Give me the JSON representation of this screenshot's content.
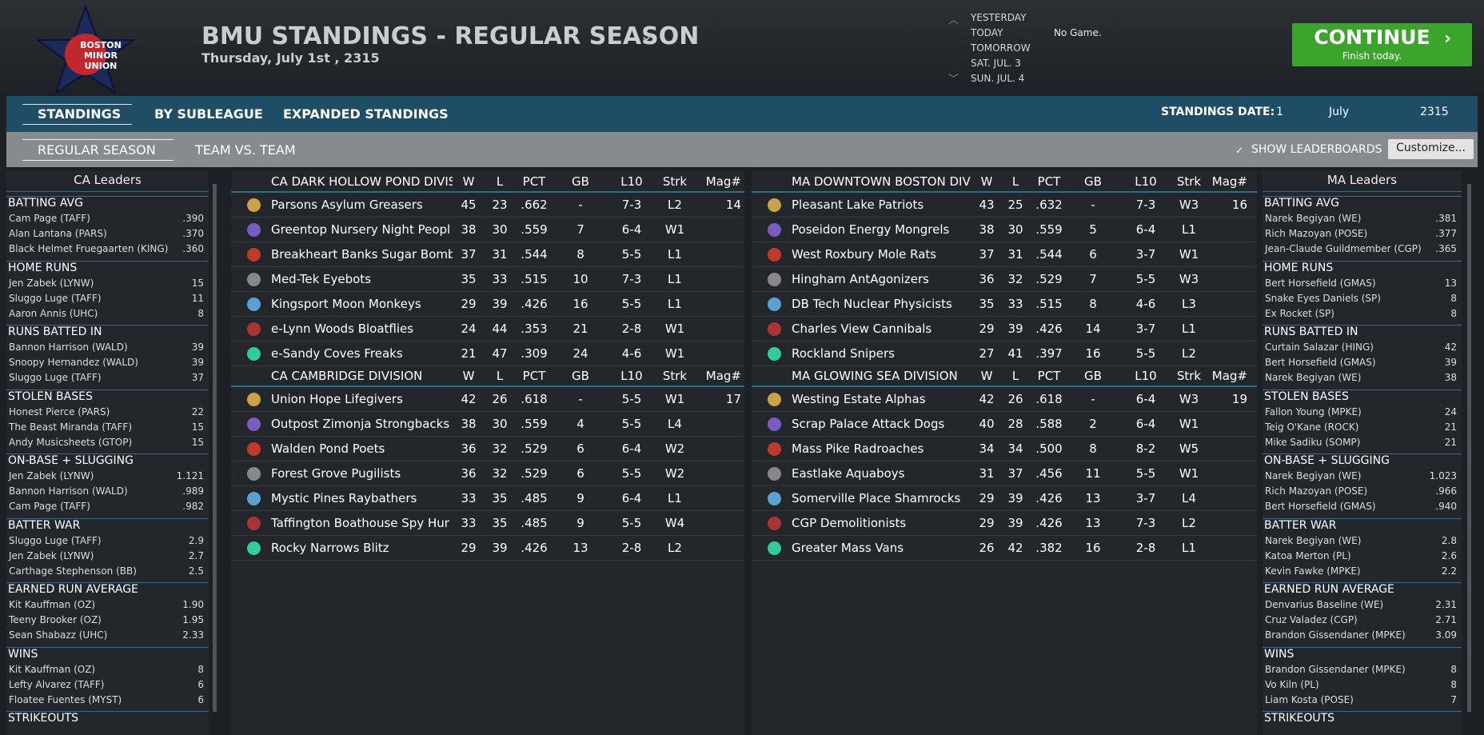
{
  "header": {
    "logo": [
      "BOSTON",
      "MINOR",
      "UNION"
    ],
    "title": "BMU STANDINGS - REGULAR SEASON",
    "date": "Thursday, July 1st , 2315",
    "days": [
      "YESTERDAY",
      "TODAY",
      "TOMORROW",
      "SAT. JUL. 3",
      "SUN. JUL. 4"
    ],
    "game": "No Game.",
    "continue": {
      "label": "CONTINUE",
      "sub": "Finish today."
    }
  },
  "nav": {
    "tabs": [
      "STANDINGS",
      "BY SUBLEAGUE",
      "EXPANDED STANDINGS"
    ],
    "date_label": "STANDINGS DATE:",
    "date_day": "1",
    "date_month": "July",
    "date_year": "2315"
  },
  "subnav": {
    "tabs": [
      "REGULAR SEASON",
      "TEAM VS. TEAM"
    ],
    "checkbox": "SHOW LEADERBOARDS",
    "button": "Customize..."
  },
  "leaders": [
    {
      "title": "CA Leaders",
      "sections": [
        {
          "title": "BATTING AVG",
          "rows": [
            [
              "Cam Page (TAFF)",
              ".390"
            ],
            [
              "Alan Lantana (PARS)",
              ".370"
            ],
            [
              "Black Helmet Fruegaarten (KING)",
              ".360"
            ]
          ]
        },
        {
          "title": "HOME RUNS",
          "rows": [
            [
              "Jen Zabek (LYNW)",
              "15"
            ],
            [
              "Sluggo Luge (TAFF)",
              "11"
            ],
            [
              "Aaron Annis (UHC)",
              "8"
            ]
          ]
        },
        {
          "title": "RUNS BATTED IN",
          "rows": [
            [
              "Bannon Harrison (WALD)",
              "39"
            ],
            [
              "Snoopy Hernandez (WALD)",
              "39"
            ],
            [
              "Sluggo Luge (TAFF)",
              "37"
            ]
          ]
        },
        {
          "title": "STOLEN BASES",
          "rows": [
            [
              "Honest Pierce (PARS)",
              "22"
            ],
            [
              "The Beast Miranda (TAFF)",
              "15"
            ],
            [
              "Andy Musicsheets (GTOP)",
              "15"
            ]
          ]
        },
        {
          "title": "ON-BASE + SLUGGING",
          "rows": [
            [
              "Jen Zabek (LYNW)",
              "1.121"
            ],
            [
              "Bannon Harrison (WALD)",
              ".989"
            ],
            [
              "Cam Page (TAFF)",
              ".982"
            ]
          ]
        },
        {
          "title": "BATTER WAR",
          "rows": [
            [
              "Sluggo Luge (TAFF)",
              "2.9"
            ],
            [
              "Jen Zabek (LYNW)",
              "2.7"
            ],
            [
              "Carthage Stephenson (BB)",
              "2.5"
            ]
          ]
        },
        {
          "title": "EARNED RUN AVERAGE",
          "rows": [
            [
              "Kit Kauffman (OZ)",
              "1.90"
            ],
            [
              "Teeny Brooker (OZ)",
              "1.95"
            ],
            [
              "Sean Shabazz (UHC)",
              "2.33"
            ]
          ]
        },
        {
          "title": "WINS",
          "rows": [
            [
              "Kit Kauffman (OZ)",
              "8"
            ],
            [
              "Lefty Alvarez (TAFF)",
              "6"
            ],
            [
              "Floatee Fuentes (MYST)",
              "6"
            ]
          ]
        },
        {
          "title": "STRIKEOUTS"
        }
      ]
    },
    {
      "title": "MA Leaders",
      "sections": [
        {
          "title": "BATTING AVG",
          "rows": [
            [
              "Narek Begiyan (WE)",
              ".381"
            ],
            [
              "Rich Mazoyan (POSE)",
              ".377"
            ],
            [
              "Jean-Claude Guildmember (CGP)",
              ".365"
            ]
          ]
        },
        {
          "title": "HOME RUNS",
          "rows": [
            [
              "Bert Horsefield (GMAS)",
              "13"
            ],
            [
              "Snake Eyes Daniels (SP)",
              "8"
            ],
            [
              "Ex Rocket (SP)",
              "8"
            ]
          ]
        },
        {
          "title": "RUNS BATTED IN",
          "rows": [
            [
              "Curtain Salazar (HING)",
              "42"
            ],
            [
              "Bert Horsefield (GMAS)",
              "39"
            ],
            [
              "Narek Begiyan (WE)",
              "38"
            ]
          ]
        },
        {
          "title": "STOLEN BASES",
          "rows": [
            [
              "Fallon Young (MPKE)",
              "24"
            ],
            [
              "Teig O'Kane (ROCK)",
              "21"
            ],
            [
              "Mike Sadiku (SOMP)",
              "21"
            ]
          ]
        },
        {
          "title": "ON-BASE + SLUGGING",
          "rows": [
            [
              "Narek Begiyan (WE)",
              "1.023"
            ],
            [
              "Rich Mazoyan (POSE)",
              ".966"
            ],
            [
              "Bert Horsefield (GMAS)",
              ".940"
            ]
          ]
        },
        {
          "title": "BATTER WAR",
          "rows": [
            [
              "Narek Begiyan (WE)",
              "2.8"
            ],
            [
              "Katoa Merton (PL)",
              "2.6"
            ],
            [
              "Kevin Fawke (MPKE)",
              "2.2"
            ]
          ]
        },
        {
          "title": "EARNED RUN AVERAGE",
          "rows": [
            [
              "Denvarius Baseline (WE)",
              "2.31"
            ],
            [
              "Cruz Valadez (CGP)",
              "2.71"
            ],
            [
              "Brandon Gissendaner (MPKE)",
              "3.09"
            ]
          ]
        },
        {
          "title": "WINS",
          "rows": [
            [
              "Brandon Gissendaner (MPKE)",
              "8"
            ],
            [
              "Vo Kiln (PL)",
              "8"
            ],
            [
              "Liam Kosta (POSE)",
              "7"
            ]
          ]
        },
        {
          "title": "STRIKEOUTS"
        }
      ]
    }
  ],
  "standings": [
    {
      "divisions": [
        {
          "name": "CA DARK HOLLOW POND DIVISIO",
          "columns": [
            "W",
            "L",
            "PCT",
            "GB",
            "L10",
            "Strk",
            "Mag#"
          ],
          "rows": [
            [
              "Parsons Asylum Greasers",
              "45",
              "23",
              ".662",
              "-",
              "7-3",
              "L2",
              "14"
            ],
            [
              "Greentop Nursery Night Peopl",
              "38",
              "30",
              ".559",
              "7",
              "6-4",
              "W1"
            ],
            [
              "Breakheart Banks Sugar Bomb",
              "37",
              "31",
              ".544",
              "8",
              "5-5",
              "L1"
            ],
            [
              "Med-Tek Eyebots",
              "35",
              "33",
              ".515",
              "10",
              "7-3",
              "L1"
            ],
            [
              "Kingsport Moon Monkeys",
              "29",
              "39",
              ".426",
              "16",
              "5-5",
              "L1"
            ],
            [
              "e-Lynn Woods Bloatflies",
              "24",
              "44",
              ".353",
              "21",
              "2-8",
              "W1"
            ],
            [
              "e-Sandy Coves Freaks",
              "21",
              "47",
              ".309",
              "24",
              "4-6",
              "W1"
            ]
          ]
        },
        {
          "name": "CA CAMBRIDGE DIVISION",
          "columns": [
            "W",
            "L",
            "PCT",
            "GB",
            "L10",
            "Strk",
            "Mag#"
          ],
          "rows": [
            [
              "Union Hope Lifegivers",
              "42",
              "26",
              ".618",
              "-",
              "5-5",
              "W1",
              "17"
            ],
            [
              "Outpost Zimonja Strongbacks",
              "38",
              "30",
              ".559",
              "4",
              "5-5",
              "L4"
            ],
            [
              "Walden Pond Poets",
              "36",
              "32",
              ".529",
              "6",
              "6-4",
              "W2"
            ],
            [
              "Forest Grove Pugilists",
              "36",
              "32",
              ".529",
              "6",
              "5-5",
              "W2"
            ],
            [
              "Mystic Pines Raybathers",
              "33",
              "35",
              ".485",
              "9",
              "6-4",
              "L1"
            ],
            [
              "Taffington Boathouse Spy Hur",
              "33",
              "35",
              ".485",
              "9",
              "5-5",
              "W4"
            ],
            [
              "Rocky Narrows Blitz",
              "29",
              "39",
              ".426",
              "13",
              "2-8",
              "L2"
            ]
          ]
        }
      ]
    },
    {
      "divisions": [
        {
          "name": "MA DOWNTOWN BOSTON DIVISI",
          "columns": [
            "W",
            "L",
            "PCT",
            "GB",
            "L10",
            "Strk",
            "Mag#"
          ],
          "rows": [
            [
              "Pleasant Lake Patriots",
              "43",
              "25",
              ".632",
              "-",
              "7-3",
              "W3",
              "16"
            ],
            [
              "Poseidon Energy Mongrels",
              "38",
              "30",
              ".559",
              "5",
              "6-4",
              "L1"
            ],
            [
              "West Roxbury Mole Rats",
              "37",
              "31",
              ".544",
              "6",
              "3-7",
              "W1"
            ],
            [
              "Hingham AntAgonizers",
              "36",
              "32",
              ".529",
              "7",
              "5-5",
              "W3"
            ],
            [
              "DB Tech Nuclear Physicists",
              "35",
              "33",
              ".515",
              "8",
              "4-6",
              "L3"
            ],
            [
              "Charles View Cannibals",
              "29",
              "39",
              ".426",
              "14",
              "3-7",
              "L1"
            ],
            [
              "Rockland Snipers",
              "27",
              "41",
              ".397",
              "16",
              "5-5",
              "L2"
            ]
          ]
        },
        {
          "name": "MA GLOWING SEA DIVISION",
          "columns": [
            "W",
            "L",
            "PCT",
            "GB",
            "L10",
            "Strk",
            "Mag#"
          ],
          "rows": [
            [
              "Westing Estate Alphas",
              "42",
              "26",
              ".618",
              "-",
              "6-4",
              "W3",
              "19"
            ],
            [
              "Scrap Palace Attack Dogs",
              "40",
              "28",
              ".588",
              "2",
              "6-4",
              "W1"
            ],
            [
              "Mass Pike Radroaches",
              "34",
              "34",
              ".500",
              "8",
              "8-2",
              "W5"
            ],
            [
              "Eastlake Aquaboys",
              "31",
              "37",
              ".456",
              "11",
              "5-5",
              "W1"
            ],
            [
              "Somerville Place Shamrocks",
              "29",
              "39",
              ".426",
              "13",
              "3-7",
              "L4"
            ],
            [
              "CGP Demolitionists",
              "29",
              "39",
              ".426",
              "13",
              "7-3",
              "L2"
            ],
            [
              "Greater Mass Vans",
              "26",
              "42",
              ".382",
              "16",
              "2-8",
              "L1"
            ]
          ]
        }
      ]
    }
  ]
}
